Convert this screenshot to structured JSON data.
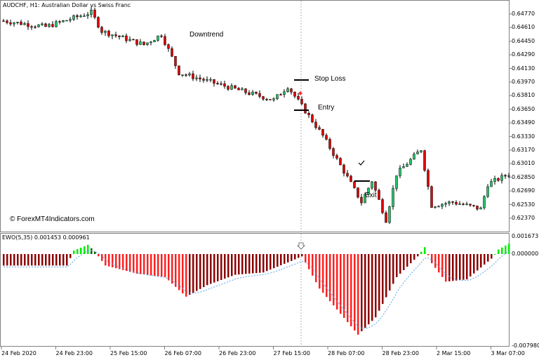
{
  "chart_title": "AUDCHF, H1:  Australian Dollar vs Swiss Franc",
  "indicator_title": "EWO(5,35) 0.001453 0.000961",
  "watermark": "© ForexMT4Indicators.com",
  "annotations": {
    "downtrend": "Downtrend",
    "stop_loss": "Stop Loss",
    "entry": "Entry",
    "exit": "Exit"
  },
  "price_axis": [
    "0.64770",
    "0.64610",
    "0.64450",
    "0.64290",
    "0.64130",
    "0.63970",
    "0.63810",
    "0.63650",
    "0.63490",
    "0.63330",
    "0.63170",
    "0.63010",
    "0.62850",
    "0.62690",
    "0.62530",
    "0.62370"
  ],
  "indicator_axis": {
    "max": "0.001673",
    "zero": "0.000000",
    "min": "-0.007980"
  },
  "time_axis": [
    "24 Feb 2020",
    "24 Feb 23:00",
    "25 Feb 15:00",
    "26 Feb 07:00",
    "26 Feb 23:00",
    "27 Feb 15:00",
    "28 Feb 07:00",
    "28 Feb 23:00",
    "2 Mar 15:00",
    "3 Mar 07:00"
  ],
  "colors": {
    "bull": "#26c46a",
    "bear": "#e00000",
    "ewo_up_neg": "#8b0000",
    "ewo_down_neg": "#ff2020",
    "ewo_pos_up": "#00ee00",
    "ewo_pos_down": "#006400",
    "signal": "#5aa0e6"
  },
  "chart_data": {
    "type": "candlestick",
    "price_path": [
      [
        0,
        0.6469
      ],
      [
        12,
        0.6462
      ],
      [
        25,
        0.6479
      ],
      [
        28,
        0.6457
      ],
      [
        40,
        0.6441
      ],
      [
        45,
        0.6453
      ],
      [
        50,
        0.6408
      ],
      [
        60,
        0.6396
      ],
      [
        70,
        0.6384
      ],
      [
        77,
        0.6376
      ],
      [
        81,
        0.6392
      ],
      [
        86,
        0.6363
      ],
      [
        91,
        0.6334
      ],
      [
        98,
        0.6285
      ],
      [
        102,
        0.6256
      ],
      [
        105,
        0.6281
      ],
      [
        109,
        0.6235
      ],
      [
        112,
        0.6289
      ],
      [
        119,
        0.6318
      ],
      [
        122,
        0.6252
      ],
      [
        128,
        0.6256
      ],
      [
        136,
        0.6248
      ],
      [
        138,
        0.6277
      ],
      [
        144,
        0.6289
      ]
    ],
    "ewo_path": [
      [
        0,
        -0.001
      ],
      [
        18,
        -0.001
      ],
      [
        20,
        0.0003
      ],
      [
        24,
        0.0008
      ],
      [
        26,
        0.0002
      ],
      [
        29,
        -0.001
      ],
      [
        38,
        -0.0017
      ],
      [
        46,
        -0.002
      ],
      [
        52,
        -0.0037
      ],
      [
        58,
        -0.0027
      ],
      [
        66,
        -0.0018
      ],
      [
        74,
        -0.0016
      ],
      [
        82,
        -0.0006
      ],
      [
        85,
        -0.0002
      ],
      [
        90,
        -0.003
      ],
      [
        101,
        -0.007
      ],
      [
        106,
        -0.0055
      ],
      [
        112,
        -0.002
      ],
      [
        118,
        -0.0002
      ],
      [
        120,
        0.0006
      ],
      [
        122,
        -0.0008
      ],
      [
        126,
        -0.0024
      ],
      [
        132,
        -0.0022
      ],
      [
        139,
        -0.0004
      ],
      [
        141,
        0.0004
      ],
      [
        144,
        0.0009
      ]
    ]
  }
}
